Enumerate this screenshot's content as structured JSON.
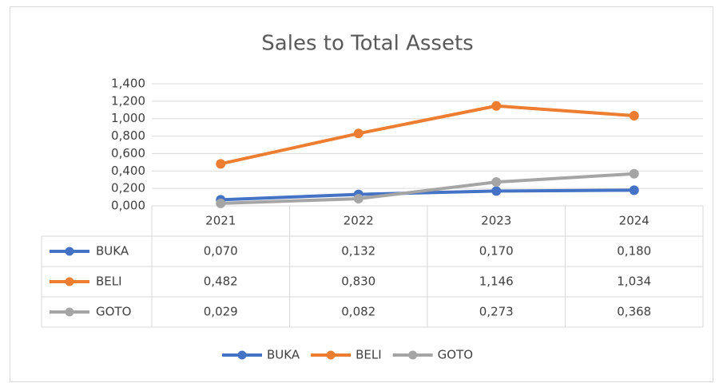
{
  "chart_data": {
    "type": "line",
    "title": "Sales to Total Assets",
    "categories": [
      "2021",
      "2022",
      "2023",
      "2024"
    ],
    "series": [
      {
        "name": "BUKA",
        "color": "#4472c4",
        "values": [
          0.07,
          0.132,
          0.17,
          0.18
        ],
        "value_labels": [
          "0,070",
          "0,132",
          "0,170",
          "0,180"
        ]
      },
      {
        "name": "BELI",
        "color": "#ed7d31",
        "values": [
          0.482,
          0.83,
          1.146,
          1.034
        ],
        "value_labels": [
          "0,482",
          "0,830",
          "1,146",
          "1,034"
        ]
      },
      {
        "name": "GOTO",
        "color": "#a5a5a5",
        "values": [
          0.029,
          0.082,
          0.273,
          0.368
        ],
        "value_labels": [
          "0,029",
          "0,082",
          "0,273",
          "0,368"
        ]
      }
    ],
    "ylim": [
      0,
      1.4
    ],
    "yticks": [
      {
        "value": 0,
        "label": "0,000"
      },
      {
        "value": 0.2,
        "label": "0,200"
      },
      {
        "value": 0.4,
        "label": "0,400"
      },
      {
        "value": 0.6,
        "label": "0,600"
      },
      {
        "value": 0.8,
        "label": "0,800"
      },
      {
        "value": 1.0,
        "label": "1,000"
      },
      {
        "value": 1.2,
        "label": "1,200"
      },
      {
        "value": 1.4,
        "label": "1,400"
      }
    ],
    "grid": true,
    "legend": "bottom"
  }
}
